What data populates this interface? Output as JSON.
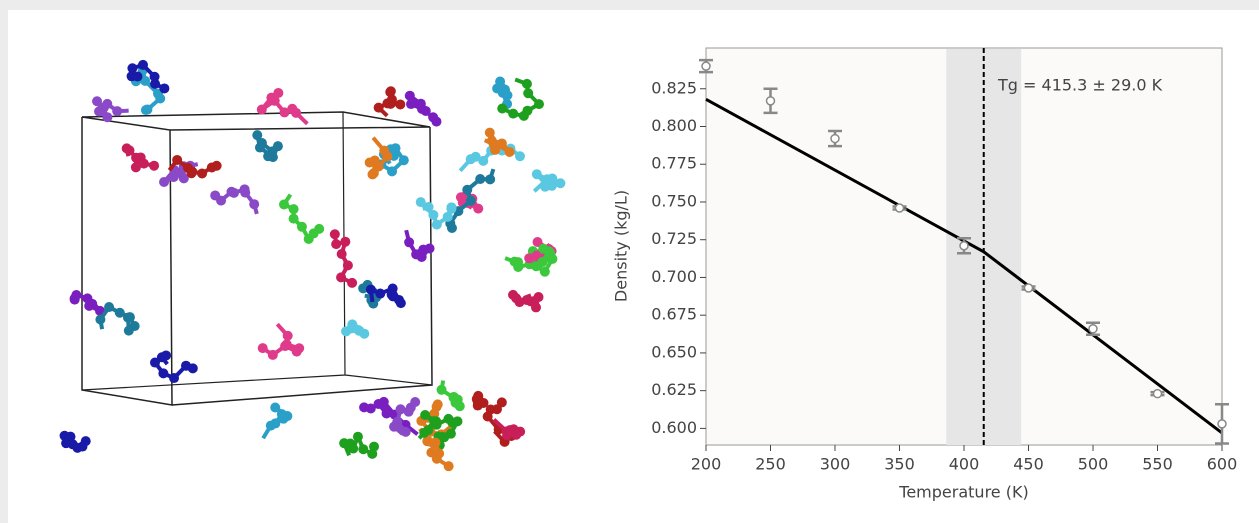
{
  "chart_data": {
    "type": "errorbar-scatter",
    "xlabel": "Temperature (K)",
    "ylabel": "Density (kg/L)",
    "annotation": "Tg = 415.3 ± 29.0 K",
    "tg": 415.3,
    "tg_err": 29.0,
    "points": {
      "color": "#888888",
      "x": [
        200,
        250,
        300,
        350,
        400,
        450,
        500,
        550,
        600
      ],
      "values": [
        0.84,
        0.817,
        0.792,
        0.746,
        0.721,
        0.693,
        0.666,
        0.623,
        0.603
      ],
      "errors": [
        0.004,
        0.008,
        0.005,
        0.001,
        0.005,
        0.001,
        0.004,
        0.001,
        0.013
      ]
    },
    "fit_line": {
      "color": "#000000",
      "x": [
        200,
        415.3,
        600
      ],
      "values": [
        0.818,
        0.717,
        0.597
      ]
    },
    "xlim": [
      200,
      600
    ],
    "ylim": [
      0.589,
      0.852
    ],
    "xticks": [
      200,
      250,
      300,
      350,
      400,
      450,
      500,
      550,
      600
    ],
    "yticks": [
      {
        "value": 0.6,
        "label": "0.600"
      },
      0.625,
      {
        "value": 0.65,
        "label": "0.650"
      },
      0.675,
      {
        "value": 0.7,
        "label": "0.700"
      },
      0.725,
      {
        "value": 0.75,
        "label": "0.750"
      },
      0.775,
      {
        "value": 0.8,
        "label": "0.800"
      },
      0.825
    ]
  }
}
